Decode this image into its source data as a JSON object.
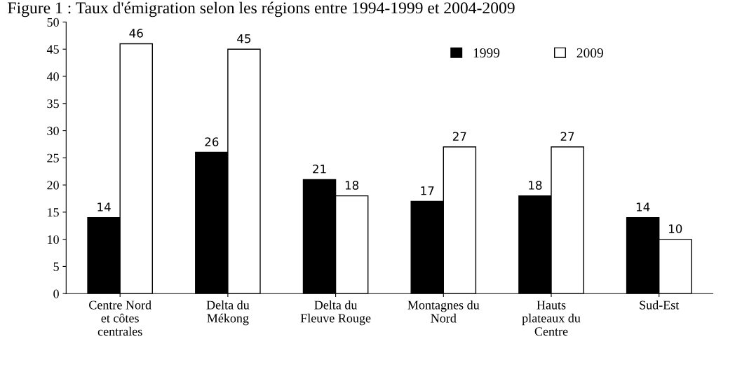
{
  "chart_data": {
    "type": "bar",
    "title": "Figure 1 : Taux d'émigration selon les régions entre 1994-1999 et 2004-2009",
    "categories": [
      "Centre Nord\net côtes\ncentrales",
      "Delta du\nMékong",
      "Delta du\nFleuve Rouge",
      "Montagnes du\nNord",
      "Hauts\nplateaux du\nCentre",
      "Sud-Est"
    ],
    "series": [
      {
        "name": "1999",
        "color": "#000000",
        "values": [
          14,
          26,
          21,
          17,
          18,
          14
        ]
      },
      {
        "name": "2009",
        "color": "#ffffff",
        "values": [
          46,
          45,
          18,
          27,
          27,
          10
        ]
      }
    ],
    "ylim": [
      0,
      50
    ],
    "yticks": [
      0,
      5,
      10,
      15,
      20,
      25,
      30,
      35,
      40,
      45,
      50
    ],
    "grid": false,
    "legend": "top right",
    "data_labels": true
  }
}
